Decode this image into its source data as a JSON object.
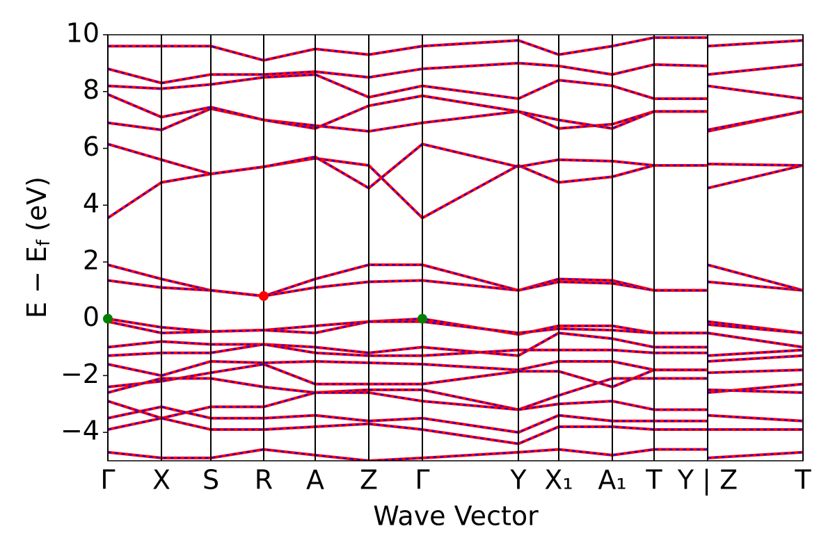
{
  "chart_data": {
    "type": "line",
    "x_label": "Wave Vector",
    "y_label": {
      "main": "E − E",
      "sub": "f",
      "unit": "(eV)"
    },
    "xlim": [
      0,
      9.99
    ],
    "ylim": [
      -5,
      10
    ],
    "xticks": [
      {
        "value": 0,
        "label": "Γ"
      },
      {
        "value": 0.77,
        "label": "X"
      },
      {
        "value": 1.48,
        "label": "S"
      },
      {
        "value": 2.24,
        "label": "R"
      },
      {
        "value": 2.98,
        "label": "A"
      },
      {
        "value": 3.75,
        "label": "Z"
      },
      {
        "value": 4.52,
        "label": "Γ"
      },
      {
        "value": 5.9,
        "label": "Y"
      },
      {
        "value": 6.48,
        "label": "X₁"
      },
      {
        "value": 7.25,
        "label": "A₁"
      },
      {
        "value": 7.85,
        "label": "T"
      },
      {
        "value": 8.62,
        "label": "Y | Z"
      },
      {
        "value": 9.99,
        "label": "T"
      }
    ],
    "yticks": [
      {
        "value": -4,
        "label": "−4"
      },
      {
        "value": -2,
        "label": "−2"
      },
      0,
      2,
      4,
      6,
      8,
      10
    ],
    "line_color": "red",
    "overlay_color": "blue",
    "x": [
      0,
      0.77,
      1.48,
      2.24,
      2.98,
      3.75,
      4.52,
      5.9,
      6.48,
      7.25,
      7.85,
      8.62,
      null,
      8.62,
      9.99
    ],
    "series": [
      {
        "values": [
          3.55,
          4.8,
          5.1,
          5.35,
          5.65,
          5.4,
          3.55,
          5.4,
          4.8,
          5.0,
          5.4,
          5.4,
          null,
          4.6,
          5.4
        ]
      },
      {
        "values": [
          6.15,
          5.6,
          5.1,
          5.35,
          5.7,
          4.6,
          6.15,
          5.35,
          5.6,
          5.55,
          5.4,
          5.4,
          null,
          5.45,
          5.4
        ]
      },
      {
        "values": [
          6.9,
          6.65,
          7.4,
          7.0,
          6.8,
          6.6,
          6.9,
          7.3,
          6.7,
          6.85,
          7.3,
          7.3,
          null,
          6.6,
          7.3
        ]
      },
      {
        "values": [
          7.9,
          7.1,
          7.45,
          7.0,
          6.7,
          7.5,
          7.85,
          7.3,
          7.0,
          6.7,
          7.3,
          7.3,
          null,
          6.65,
          7.3
        ]
      },
      {
        "values": [
          8.2,
          8.1,
          8.25,
          8.5,
          8.6,
          7.8,
          8.2,
          7.75,
          8.4,
          8.2,
          7.75,
          7.75,
          null,
          8.2,
          7.75
        ]
      },
      {
        "values": [
          8.8,
          8.3,
          8.6,
          8.6,
          8.7,
          8.5,
          8.8,
          9.0,
          8.9,
          8.6,
          8.95,
          8.9,
          null,
          8.6,
          8.95
        ]
      },
      {
        "values": [
          9.6,
          9.6,
          9.6,
          9.1,
          9.5,
          9.3,
          9.6,
          9.8,
          9.3,
          9.6,
          9.9,
          9.9,
          null,
          9.6,
          9.8
        ]
      },
      {
        "values": [
          1.9,
          1.4,
          1.0,
          0.8,
          1.4,
          1.9,
          1.9,
          1.0,
          1.4,
          1.35,
          1.0,
          1.0,
          null,
          1.9,
          1.0
        ]
      },
      {
        "values": [
          1.35,
          1.1,
          1.0,
          0.8,
          1.1,
          1.3,
          1.35,
          1.0,
          1.3,
          1.25,
          1.0,
          1.0,
          null,
          1.3,
          1.0
        ]
      },
      {
        "values": [
          0,
          -0.3,
          -0.45,
          -0.4,
          -0.25,
          -0.1,
          0,
          -0.55,
          -0.25,
          -0.25,
          -0.5,
          -0.5,
          null,
          -0.1,
          -0.5
        ]
      },
      {
        "values": [
          -0.1,
          -0.5,
          -0.45,
          -0.4,
          -0.5,
          -0.1,
          -0.1,
          -0.5,
          -0.35,
          -0.4,
          -0.5,
          -0.5,
          null,
          -0.2,
          -0.5
        ]
      },
      {
        "values": [
          -1.0,
          -0.8,
          -0.9,
          -0.9,
          -1.0,
          -1.2,
          -1.0,
          -1.3,
          -0.5,
          -0.7,
          -1.0,
          -1.0,
          null,
          -0.5,
          -1.0
        ]
      },
      {
        "values": [
          -1.3,
          -1.2,
          -1.2,
          -0.9,
          -1.2,
          -1.3,
          -1.3,
          -1.1,
          -1.1,
          -1.1,
          -1.2,
          -1.2,
          null,
          -1.3,
          -1.1
        ]
      },
      {
        "values": [
          -1.6,
          -2.0,
          -1.5,
          -1.55,
          -1.5,
          -1.55,
          -1.6,
          -1.8,
          -1.5,
          -1.5,
          -1.8,
          -1.8,
          null,
          -1.5,
          -1.3
        ]
      },
      {
        "values": [
          -2.4,
          -2.2,
          -1.9,
          -1.6,
          -2.3,
          -2.3,
          -2.3,
          -1.85,
          -1.85,
          -2.4,
          -1.8,
          -1.8,
          null,
          -1.9,
          -1.8
        ]
      },
      {
        "values": [
          -2.6,
          -2.1,
          -2.1,
          -2.4,
          -2.6,
          -2.5,
          -2.5,
          -3.2,
          -2.7,
          -2.1,
          -2.1,
          -2.1,
          null,
          -2.6,
          -2.3
        ]
      },
      {
        "values": [
          -2.9,
          -3.5,
          -3.1,
          -3.1,
          -2.6,
          -2.6,
          -2.9,
          -3.2,
          -3.0,
          -2.9,
          -3.2,
          -3.2,
          null,
          -2.5,
          -2.6
        ]
      },
      {
        "values": [
          -3.5,
          -3.1,
          -3.5,
          -3.5,
          -3.4,
          -3.6,
          -3.5,
          -4.0,
          -3.4,
          -3.6,
          -3.6,
          -3.6,
          null,
          -3.4,
          -3.6
        ]
      },
      {
        "values": [
          -3.9,
          -3.5,
          -3.9,
          -3.9,
          -3.8,
          -3.7,
          -3.9,
          -4.4,
          -3.8,
          -3.8,
          -3.9,
          -3.9,
          null,
          -3.9,
          -3.9
        ]
      },
      {
        "values": [
          -4.7,
          -4.9,
          -4.9,
          -4.6,
          -4.8,
          -5.0,
          -4.9,
          -4.7,
          -4.6,
          -4.8,
          -4.6,
          -4.6,
          null,
          -4.9,
          -4.7
        ]
      }
    ],
    "markers": [
      {
        "x": 0,
        "y": 0,
        "color": "green"
      },
      {
        "x": 4.52,
        "y": 0,
        "color": "green"
      },
      {
        "x": 2.24,
        "y": 0.8,
        "color": "red"
      }
    ]
  }
}
